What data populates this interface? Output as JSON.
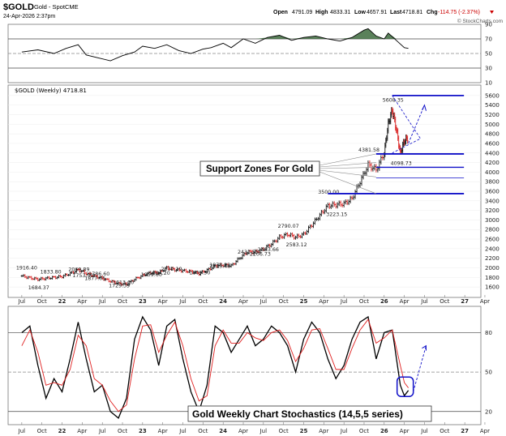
{
  "header": {
    "symbol": "$GOLD",
    "name": "Gold - Spot",
    "exchange": "CME",
    "date": "24-Apr-2026 2:37pm",
    "open_label": "Open",
    "open": "4791.09",
    "high_label": "High",
    "high": "4833.31",
    "low_label": "Low",
    "low": "4657.91",
    "last_label": "Last",
    "last": "4718.81",
    "chg_label": "Chg",
    "chg": "-114.75 (-2.37%)",
    "watermark": "© StockCharts.com"
  },
  "price_panel_label": "$GOLD (Weekly) 4718.81",
  "x_axis_labels": [
    "Jul",
    "Oct",
    "22",
    "Apr",
    "Jul",
    "Oct",
    "23",
    "Apr",
    "Jul",
    "Oct",
    "24",
    "Apr",
    "Jul",
    "Oct",
    "25",
    "Apr",
    "Jul",
    "Oct",
    "26",
    "Apr",
    "Jul",
    "Oct",
    "27",
    "Apr"
  ],
  "annotations": {
    "support_zones": "Support Zones For Gold",
    "stochastics_title": "Gold Weekly Chart Stochastics (14,5,5 series)"
  },
  "colors": {
    "stoch_fast": "#000000",
    "stoch_slow": "#e02020",
    "annotation_line": "#1010c8",
    "rsi_fill": "#3e6b3e",
    "down_candle": "#d81e1e",
    "up_candle": "#111111"
  },
  "chart_data": [
    {
      "type": "line",
      "panel": "RSI (top)",
      "ylim": [
        10,
        90
      ],
      "yticks": [
        10,
        30,
        50,
        70,
        90
      ],
      "reference_lines": [
        70,
        50,
        30
      ],
      "x": [
        2021.5,
        2021.7,
        2021.9,
        2022.05,
        2022.2,
        2022.3,
        2022.45,
        2022.6,
        2022.75,
        2022.9,
        2023.0,
        2023.15,
        2023.3,
        2023.45,
        2023.6,
        2023.75,
        2023.85,
        2024.0,
        2024.1,
        2024.25,
        2024.4,
        2024.55,
        2024.7,
        2024.85,
        2025.0,
        2025.15,
        2025.3,
        2025.45,
        2025.6,
        2025.75,
        2025.8,
        2025.9,
        2026.0,
        2026.05,
        2026.15,
        2026.25,
        2026.3
      ],
      "values": [
        52,
        55,
        50,
        57,
        62,
        48,
        44,
        40,
        47,
        52,
        60,
        57,
        62,
        54,
        50,
        56,
        58,
        64,
        58,
        70,
        64,
        72,
        75,
        68,
        72,
        74,
        70,
        67,
        72,
        82,
        84,
        74,
        70,
        78,
        68,
        58,
        57
      ]
    },
    {
      "type": "bar",
      "panel": "Price (weekly OHLC)",
      "ylim": [
        1500,
        5700
      ],
      "yticks": [
        1600,
        1800,
        2000,
        2200,
        2400,
        2600,
        2800,
        3000,
        3200,
        3400,
        3600,
        3800,
        4000,
        4200,
        4400,
        4600,
        4800,
        5000,
        5200,
        5400,
        5600
      ],
      "price_labels": [
        {
          "x": 2021.55,
          "value": 1916.4,
          "text": "1916.40"
        },
        {
          "x": 2021.7,
          "value": 1684.37,
          "text": "1684.37"
        },
        {
          "x": 2021.85,
          "value": 1833.8,
          "text": "1833.80"
        },
        {
          "x": 2022.2,
          "value": 2069.89,
          "text": "2069.89"
        },
        {
          "x": 2022.25,
          "value": 1753.3,
          "text": "1753.30"
        },
        {
          "x": 2022.4,
          "value": 1877.05,
          "text": "1877.05"
        },
        {
          "x": 2022.45,
          "value": 1786.6,
          "text": "1786.60"
        },
        {
          "x": 2022.7,
          "value": 1729.39,
          "text": "1729.39"
        },
        {
          "x": 2022.75,
          "value": 1613.6,
          "text": "1613.60"
        },
        {
          "x": 2023.1,
          "value": 1959.6,
          "text": "1959.60"
        },
        {
          "x": 2023.2,
          "value": 1804.2,
          "text": "1804.20"
        },
        {
          "x": 2023.35,
          "value": 2072.19,
          "text": "2072.19"
        },
        {
          "x": 2023.7,
          "value": 1809.5,
          "text": "1809.50"
        },
        {
          "x": 2023.95,
          "value": 2135.4,
          "text": "2135.40"
        },
        {
          "x": 2023.95,
          "value": 1973.12,
          "text": "1973.12"
        },
        {
          "x": 2024.3,
          "value": 2431.55,
          "text": "2431.55"
        },
        {
          "x": 2024.45,
          "value": 2206.73,
          "text": "2206.73"
        },
        {
          "x": 2024.55,
          "value": 2483.66,
          "text": "2483.66"
        },
        {
          "x": 2024.8,
          "value": 2790.07,
          "text": "2790.07"
        },
        {
          "x": 2024.9,
          "value": 2583.12,
          "text": "2583.12"
        },
        {
          "x": 2025.3,
          "value": 3500.0,
          "text": "3500.00"
        },
        {
          "x": 2025.4,
          "value": 3223.15,
          "text": "3223.15"
        },
        {
          "x": 2025.8,
          "value": 4381.58,
          "text": "4381.58"
        },
        {
          "x": 2026.1,
          "value": 5608.35,
          "text": "5608.35"
        },
        {
          "x": 2026.2,
          "value": 4098.73,
          "text": "4098.73"
        }
      ],
      "support_lines": [
        3550,
        3880,
        4100,
        4380
      ],
      "resistance_line": 5600,
      "closes": [
        {
          "x": 2021.5,
          "value": 1830
        },
        {
          "x": 2021.6,
          "value": 1790
        },
        {
          "x": 2021.7,
          "value": 1760
        },
        {
          "x": 2021.8,
          "value": 1780
        },
        {
          "x": 2021.9,
          "value": 1800
        },
        {
          "x": 2022.0,
          "value": 1820
        },
        {
          "x": 2022.1,
          "value": 1880
        },
        {
          "x": 2022.2,
          "value": 1960
        },
        {
          "x": 2022.3,
          "value": 1880
        },
        {
          "x": 2022.4,
          "value": 1830
        },
        {
          "x": 2022.5,
          "value": 1780
        },
        {
          "x": 2022.6,
          "value": 1720
        },
        {
          "x": 2022.7,
          "value": 1670
        },
        {
          "x": 2022.8,
          "value": 1660
        },
        {
          "x": 2022.9,
          "value": 1760
        },
        {
          "x": 2023.0,
          "value": 1840
        },
        {
          "x": 2023.1,
          "value": 1900
        },
        {
          "x": 2023.2,
          "value": 1900
        },
        {
          "x": 2023.3,
          "value": 2000
        },
        {
          "x": 2023.4,
          "value": 1960
        },
        {
          "x": 2023.5,
          "value": 1940
        },
        {
          "x": 2023.6,
          "value": 1920
        },
        {
          "x": 2023.7,
          "value": 1880
        },
        {
          "x": 2023.8,
          "value": 1950
        },
        {
          "x": 2023.9,
          "value": 2040
        },
        {
          "x": 2024.0,
          "value": 2060
        },
        {
          "x": 2024.1,
          "value": 2040
        },
        {
          "x": 2024.2,
          "value": 2200
        },
        {
          "x": 2024.3,
          "value": 2330
        },
        {
          "x": 2024.4,
          "value": 2330
        },
        {
          "x": 2024.5,
          "value": 2390
        },
        {
          "x": 2024.6,
          "value": 2500
        },
        {
          "x": 2024.7,
          "value": 2640
        },
        {
          "x": 2024.8,
          "value": 2700
        },
        {
          "x": 2024.9,
          "value": 2640
        },
        {
          "x": 2025.0,
          "value": 2700
        },
        {
          "x": 2025.1,
          "value": 2900
        },
        {
          "x": 2025.2,
          "value": 3100
        },
        {
          "x": 2025.3,
          "value": 3300
        },
        {
          "x": 2025.4,
          "value": 3320
        },
        {
          "x": 2025.5,
          "value": 3340
        },
        {
          "x": 2025.6,
          "value": 3450
        },
        {
          "x": 2025.7,
          "value": 3800
        },
        {
          "x": 2025.8,
          "value": 4150
        },
        {
          "x": 2025.9,
          "value": 4050
        },
        {
          "x": 2026.0,
          "value": 4400
        },
        {
          "x": 2026.05,
          "value": 5000
        },
        {
          "x": 2026.1,
          "value": 5300
        },
        {
          "x": 2026.15,
          "value": 4900
        },
        {
          "x": 2026.2,
          "value": 4400
        },
        {
          "x": 2026.25,
          "value": 4650
        },
        {
          "x": 2026.3,
          "value": 4719
        }
      ]
    },
    {
      "type": "line",
      "panel": "Stochastics (14,5,5)",
      "ylim": [
        10,
        100
      ],
      "yticks": [
        20,
        50,
        80
      ],
      "reference_lines": [
        80,
        50,
        20
      ],
      "series": [
        {
          "x": [
            2021.5,
            2021.6,
            2021.7,
            2021.8,
            2021.9,
            2022.0,
            2022.1,
            2022.2,
            2022.3,
            2022.4,
            2022.5,
            2022.6,
            2022.7,
            2022.8,
            2022.9,
            2023.0,
            2023.1,
            2023.2,
            2023.3,
            2023.4,
            2023.5,
            2023.6,
            2023.7,
            2023.8,
            2023.9,
            2024.0,
            2024.1,
            2024.2,
            2024.3,
            2024.4,
            2024.5,
            2024.6,
            2024.7,
            2024.8,
            2024.9,
            2025.0,
            2025.1,
            2025.2,
            2025.3,
            2025.4,
            2025.5,
            2025.6,
            2025.7,
            2025.8,
            2025.9,
            2026.0,
            2026.1,
            2026.2,
            2026.25,
            2026.3
          ],
          "values": [
            80,
            85,
            55,
            30,
            45,
            35,
            60,
            88,
            60,
            35,
            40,
            20,
            15,
            30,
            75,
            92,
            82,
            55,
            85,
            90,
            60,
            35,
            20,
            40,
            85,
            80,
            65,
            75,
            85,
            70,
            75,
            85,
            80,
            70,
            50,
            75,
            88,
            80,
            60,
            45,
            55,
            75,
            88,
            92,
            60,
            80,
            82,
            40,
            32,
            36
          ]
        },
        {
          "x": [
            2021.5,
            2021.6,
            2021.7,
            2021.8,
            2021.9,
            2022.0,
            2022.1,
            2022.2,
            2022.3,
            2022.4,
            2022.5,
            2022.6,
            2022.7,
            2022.8,
            2022.9,
            2023.0,
            2023.1,
            2023.2,
            2023.3,
            2023.4,
            2023.5,
            2023.6,
            2023.7,
            2023.8,
            2023.9,
            2024.0,
            2024.1,
            2024.2,
            2024.3,
            2024.4,
            2024.5,
            2024.6,
            2024.7,
            2024.8,
            2024.9,
            2025.0,
            2025.1,
            2025.2,
            2025.3,
            2025.4,
            2025.5,
            2025.6,
            2025.7,
            2025.8,
            2025.9,
            2026.0,
            2026.1,
            2026.2,
            2026.25,
            2026.3
          ],
          "values": [
            70,
            82,
            65,
            40,
            42,
            40,
            52,
            78,
            70,
            45,
            40,
            28,
            20,
            25,
            60,
            85,
            86,
            65,
            78,
            88,
            70,
            45,
            28,
            32,
            70,
            82,
            72,
            72,
            80,
            76,
            74,
            80,
            82,
            74,
            58,
            68,
            82,
            83,
            68,
            52,
            52,
            68,
            82,
            90,
            72,
            76,
            82,
            55,
            42,
            38
          ]
        }
      ]
    }
  ]
}
